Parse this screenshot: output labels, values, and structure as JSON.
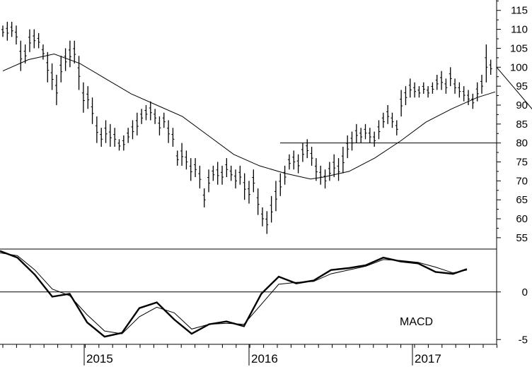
{
  "chart_data": [
    {
      "type": "ohlc",
      "panel": "price",
      "y_axis_side": "right",
      "ylim": [
        52,
        117
      ],
      "yticks": [
        55,
        60,
        65,
        70,
        75,
        80,
        85,
        90,
        95,
        100,
        105,
        110,
        115
      ],
      "ytick_labels": [
        "55",
        "60",
        "65",
        "70",
        "75",
        "80",
        "85",
        "90",
        "95",
        "100",
        "105",
        "110",
        "115"
      ],
      "x_start": "2014-06",
      "x_labels": [
        "2015",
        "2016",
        "2017"
      ],
      "x_label_years": [
        2015,
        2016,
        2017
      ],
      "bar_interval_days": 7,
      "bars_hl": [
        [
          111,
          108
        ],
        [
          112,
          107
        ],
        [
          112,
          108
        ],
        [
          111,
          106
        ],
        [
          107,
          99
        ],
        [
          106,
          101
        ],
        [
          110,
          104
        ],
        [
          110,
          105
        ],
        [
          109,
          105
        ],
        [
          106,
          102
        ],
        [
          104,
          96
        ],
        [
          101,
          94
        ],
        [
          98,
          90
        ],
        [
          103,
          96
        ],
        [
          105,
          99
        ],
        [
          107,
          100
        ],
        [
          107,
          101
        ],
        [
          103,
          94
        ],
        [
          96,
          88
        ],
        [
          95,
          89
        ],
        [
          92,
          85
        ],
        [
          87,
          80
        ],
        [
          84,
          79
        ],
        [
          86,
          80
        ],
        [
          85,
          79
        ],
        [
          84,
          79
        ],
        [
          81,
          78
        ],
        [
          82,
          78
        ],
        [
          84,
          80
        ],
        [
          86,
          81
        ],
        [
          88,
          82
        ],
        [
          89,
          85
        ],
        [
          90,
          86
        ],
        [
          91,
          86
        ],
        [
          89,
          85
        ],
        [
          87,
          82
        ],
        [
          88,
          84
        ],
        [
          86,
          80
        ],
        [
          84,
          79
        ],
        [
          78,
          74
        ],
        [
          80,
          74
        ],
        [
          78,
          73
        ],
        [
          76,
          70
        ],
        [
          76,
          71
        ],
        [
          74,
          68
        ],
        [
          68,
          63
        ],
        [
          73,
          67
        ],
        [
          74,
          70
        ],
        [
          75,
          69
        ],
        [
          74,
          69
        ],
        [
          76,
          71
        ],
        [
          74,
          70
        ],
        [
          73,
          68
        ],
        [
          74,
          69
        ],
        [
          72,
          65
        ],
        [
          70,
          64
        ],
        [
          73,
          67
        ],
        [
          68,
          61
        ],
        [
          63,
          58
        ],
        [
          62,
          56
        ],
        [
          66,
          59
        ],
        [
          70,
          62
        ],
        [
          72,
          66
        ],
        [
          74,
          69
        ],
        [
          77,
          73
        ],
        [
          78,
          73
        ],
        [
          77,
          72
        ],
        [
          80,
          75
        ],
        [
          81,
          76
        ],
        [
          79,
          74
        ],
        [
          76,
          70
        ],
        [
          74,
          69
        ],
        [
          73,
          68
        ],
        [
          75,
          70
        ],
        [
          77,
          71
        ],
        [
          76,
          70
        ],
        [
          79,
          72
        ],
        [
          82,
          76
        ],
        [
          83,
          78
        ],
        [
          85,
          80
        ],
        [
          84,
          80
        ],
        [
          85,
          81
        ],
        [
          84,
          80
        ],
        [
          83,
          79
        ],
        [
          86,
          81
        ],
        [
          88,
          84
        ],
        [
          90,
          85
        ],
        [
          88,
          84
        ],
        [
          86,
          82
        ],
        [
          94,
          87
        ],
        [
          95,
          90
        ],
        [
          97,
          92
        ],
        [
          96,
          92
        ],
        [
          95,
          92
        ],
        [
          96,
          93
        ],
        [
          95,
          92
        ],
        [
          96,
          93
        ],
        [
          98,
          94
        ],
        [
          99,
          94
        ],
        [
          97,
          93
        ],
        [
          100,
          95
        ],
        [
          97,
          93
        ],
        [
          96,
          92
        ],
        [
          95,
          91
        ],
        [
          94,
          90
        ],
        [
          93,
          89
        ],
        [
          96,
          91
        ],
        [
          98,
          93
        ],
        [
          106,
          96
        ],
        [
          102,
          98
        ]
      ],
      "ma_line": [
        [
          0,
          99
        ],
        [
          10,
          102
        ],
        [
          20,
          103.5
        ],
        [
          30,
          101
        ],
        [
          40,
          97
        ],
        [
          50,
          93
        ],
        [
          60,
          90
        ],
        [
          70,
          87
        ],
        [
          80,
          82
        ],
        [
          90,
          77
        ],
        [
          100,
          74
        ],
        [
          110,
          72
        ],
        [
          120,
          70.5
        ],
        [
          125,
          71
        ],
        [
          135,
          72.5
        ],
        [
          145,
          76
        ],
        [
          155,
          80.5
        ],
        [
          165,
          85.5
        ],
        [
          175,
          89
        ],
        [
          185,
          92
        ],
        [
          192,
          93.5
        ]
      ],
      "trendline": [
        [
          78,
          68
        ],
        [
          198,
          100
        ]
      ],
      "horizontal_level": 80,
      "horizontal_level_start": 72
    },
    {
      "type": "line",
      "panel": "indicator",
      "annotation": "MACD",
      "y_axis_side": "right",
      "ylim": [
        -5.5,
        4.5
      ],
      "yticks": [
        0,
        -5
      ],
      "ytick_labels": [
        "0",
        "-5"
      ],
      "zero_line": 0,
      "series": [
        {
          "style": "thick",
          "values": [
            [
              0,
              4.3
            ],
            [
              5,
              3.6
            ],
            [
              10,
              1.8
            ],
            [
              15,
              -0.5
            ],
            [
              20,
              -0.2
            ],
            [
              25,
              -3.2
            ],
            [
              30,
              -4.7
            ],
            [
              35,
              -4.3
            ],
            [
              40,
              -1.7
            ],
            [
              45,
              -1.1
            ],
            [
              50,
              -2.9
            ],
            [
              55,
              -4.4
            ],
            [
              60,
              -3.4
            ],
            [
              65,
              -3.1
            ],
            [
              70,
              -3.6
            ],
            [
              75,
              -0.2
            ],
            [
              80,
              1.6
            ],
            [
              85,
              0.9
            ],
            [
              90,
              1.2
            ],
            [
              95,
              2.3
            ],
            [
              100,
              2.5
            ],
            [
              105,
              2.8
            ],
            [
              110,
              3.6
            ],
            [
              115,
              3.2
            ],
            [
              120,
              3.0
            ],
            [
              125,
              2.1
            ],
            [
              130,
              1.9
            ],
            [
              134,
              2.4
            ]
          ]
        },
        {
          "style": "thin",
          "values": [
            [
              0,
              4.1
            ],
            [
              5,
              3.8
            ],
            [
              10,
              2.3
            ],
            [
              15,
              0.3
            ],
            [
              20,
              -0.4
            ],
            [
              25,
              -2.4
            ],
            [
              30,
              -4.1
            ],
            [
              35,
              -4.4
            ],
            [
              40,
              -2.6
            ],
            [
              45,
              -1.6
            ],
            [
              50,
              -2.2
            ],
            [
              55,
              -3.9
            ],
            [
              60,
              -3.4
            ],
            [
              65,
              -3.3
            ],
            [
              70,
              -3.4
            ],
            [
              75,
              -1.3
            ],
            [
              80,
              0.8
            ],
            [
              85,
              1.0
            ],
            [
              90,
              1.1
            ],
            [
              95,
              1.9
            ],
            [
              100,
              2.3
            ],
            [
              105,
              2.7
            ],
            [
              110,
              3.4
            ],
            [
              115,
              3.3
            ],
            [
              120,
              3.1
            ],
            [
              125,
              2.6
            ],
            [
              130,
              2.0
            ],
            [
              134,
              2.3
            ]
          ]
        }
      ],
      "x_index_scale": 1.45
    }
  ]
}
